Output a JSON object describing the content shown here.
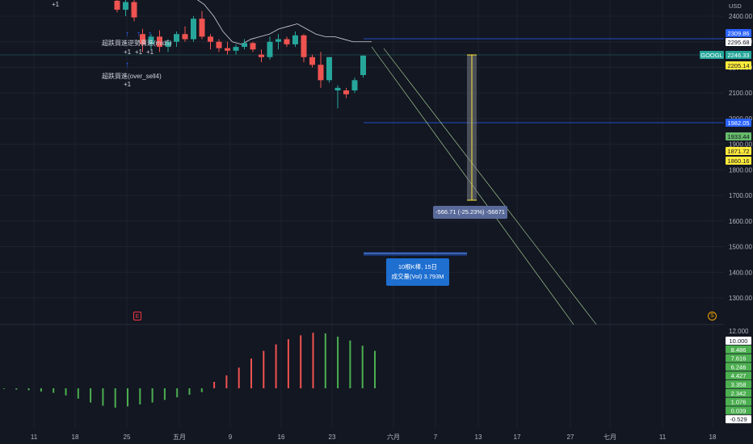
{
  "axis": {
    "currency": "USD",
    "main_ticks": [
      "2400.00",
      "2300.00",
      "2200.00",
      "2100.00",
      "2000.00",
      "1900.00",
      "1800.00",
      "1700.00",
      "1600.00",
      "1500.00",
      "1400.00",
      "1300.00"
    ],
    "osc_ticks": [
      "12.000"
    ],
    "x_ticks": [
      "11",
      "18",
      "25",
      "五月",
      "9",
      "16",
      "23",
      "六月",
      "7",
      "13",
      "17",
      "27",
      "七月",
      "11",
      "18"
    ]
  },
  "price_tags": [
    {
      "label": "2309.86",
      "color": "#2962ff",
      "text_color": "#ffffff"
    },
    {
      "label": "2295.68",
      "color": "#ffffff",
      "text_color": "#131722"
    },
    {
      "label": "GOOGL",
      "color": "#26a69a",
      "text_color": "#ffffff"
    },
    {
      "label": "2246.33",
      "color": "#26a69a",
      "text_color": "#ffffff"
    },
    {
      "label": "2205.14",
      "color": "#ffeb3b",
      "text_color": "#131722"
    },
    {
      "label": "1982.05",
      "color": "#2962ff",
      "text_color": "#ffffff"
    },
    {
      "label": "1933.44",
      "color": "#66bb6a",
      "text_color": "#131722"
    },
    {
      "label": "1871.72",
      "color": "#ffeb3b",
      "text_color": "#131722"
    },
    {
      "label": "1860.16",
      "color": "#ffeb3b",
      "text_color": "#131722"
    }
  ],
  "osc_tags": [
    {
      "label": "10.000",
      "color": "#ffffff",
      "text_color": "#131722"
    },
    {
      "label": "8.486",
      "color": "#4caf50",
      "text_color": "#ffffff"
    },
    {
      "label": "7.616",
      "color": "#4caf50",
      "text_color": "#ffffff"
    },
    {
      "label": "6.246",
      "color": "#4caf50",
      "text_color": "#ffffff"
    },
    {
      "label": "4.427",
      "color": "#4caf50",
      "text_color": "#ffffff"
    },
    {
      "label": "3.358",
      "color": "#4caf50",
      "text_color": "#ffffff"
    },
    {
      "label": "2.342",
      "color": "#4caf50",
      "text_color": "#ffffff"
    },
    {
      "label": "1.076",
      "color": "#4caf50",
      "text_color": "#ffffff"
    },
    {
      "label": "0.039",
      "color": "#4caf50",
      "text_color": "#ffffff"
    },
    {
      "label": "-0.529",
      "color": "#ffffff",
      "text_color": "#131722"
    }
  ],
  "annotations": {
    "signal_1": "超跌買進逆勢賣進(mid5)",
    "signal_1_counts": [
      "+1",
      "+1",
      "+1"
    ],
    "signal_2": "超跌買進(over_sell4)",
    "signal_2_count": "+1",
    "top_count": "+1",
    "measure": "-566.71 (-25.23%) -56671",
    "range_line1": "10根K棒, 15日",
    "range_line2": "成交量(Vol) 3.793M",
    "earnings_marker": "E",
    "split_marker": "S"
  },
  "colors": {
    "bg": "#131722",
    "grid": "#1e222d",
    "up": "#26a69a",
    "down": "#ef5350",
    "osc_up": "#4caf50",
    "osc_down": "#f05350"
  },
  "chart_data": {
    "type": "candlestick",
    "candles": [
      {
        "o": 2460,
        "h": 2480,
        "l": 2415,
        "c": 2425
      },
      {
        "o": 2425,
        "h": 2470,
        "l": 2400,
        "c": 2455
      },
      {
        "o": 2455,
        "h": 2475,
        "l": 2380,
        "c": 2395
      },
      {
        "o": 2330,
        "h": 2350,
        "l": 2260,
        "c": 2290
      },
      {
        "o": 2290,
        "h": 2330,
        "l": 2270,
        "c": 2320
      },
      {
        "o": 2320,
        "h": 2345,
        "l": 2260,
        "c": 2280
      },
      {
        "o": 2280,
        "h": 2310,
        "l": 2260,
        "c": 2300
      },
      {
        "o": 2300,
        "h": 2340,
        "l": 2280,
        "c": 2330
      },
      {
        "o": 2330,
        "h": 2360,
        "l": 2300,
        "c": 2310
      },
      {
        "o": 2310,
        "h": 2400,
        "l": 2300,
        "c": 2390
      },
      {
        "o": 2390,
        "h": 2420,
        "l": 2310,
        "c": 2320
      },
      {
        "o": 2320,
        "h": 2330,
        "l": 2270,
        "c": 2300
      },
      {
        "o": 2300,
        "h": 2310,
        "l": 2260,
        "c": 2275
      },
      {
        "o": 2275,
        "h": 2300,
        "l": 2250,
        "c": 2265
      },
      {
        "o": 2265,
        "h": 2290,
        "l": 2250,
        "c": 2280
      },
      {
        "o": 2280,
        "h": 2310,
        "l": 2270,
        "c": 2295
      },
      {
        "o": 2295,
        "h": 2300,
        "l": 2260,
        "c": 2270
      },
      {
        "o": 2250,
        "h": 2270,
        "l": 2220,
        "c": 2240
      },
      {
        "o": 2240,
        "h": 2320,
        "l": 2230,
        "c": 2300
      },
      {
        "o": 2300,
        "h": 2330,
        "l": 2270,
        "c": 2310
      },
      {
        "o": 2310,
        "h": 2320,
        "l": 2280,
        "c": 2290
      },
      {
        "o": 2290,
        "h": 2340,
        "l": 2280,
        "c": 2325
      },
      {
        "o": 2325,
        "h": 2330,
        "l": 2220,
        "c": 2240
      },
      {
        "o": 2240,
        "h": 2250,
        "l": 2200,
        "c": 2210
      },
      {
        "o": 2210,
        "h": 2260,
        "l": 2120,
        "c": 2150
      },
      {
        "o": 2150,
        "h": 2240,
        "l": 2140,
        "c": 2240
      },
      {
        "o": 2110,
        "h": 2130,
        "l": 2040,
        "c": 2120
      },
      {
        "o": 2110,
        "h": 2120,
        "l": 2080,
        "c": 2095
      },
      {
        "o": 2110,
        "h": 2160,
        "l": 2100,
        "c": 2150
      },
      {
        "o": 2170,
        "h": 2246,
        "l": 2160,
        "c": 2246
      }
    ],
    "ma_line": [
      2480,
      2470,
      2445,
      2400,
      2340,
      2300,
      2290,
      2310,
      2320,
      2330,
      2350,
      2360,
      2370,
      2350,
      2330,
      2320,
      2320,
      2310,
      2300,
      2300,
      2300
    ],
    "measure": {
      "from": 2246.33,
      "to": 1680,
      "change": "-566.71",
      "pct": "-25.23%"
    },
    "oscillator": [
      -0.1,
      -0.2,
      -0.3,
      -0.5,
      -0.7,
      -1.1,
      -1.6,
      -2.2,
      -2.7,
      -3.0,
      -2.8,
      -2.5,
      -2.2,
      -1.8,
      -1.4,
      -1.0,
      -0.6,
      1.0,
      2.0,
      3.2,
      4.6,
      5.8,
      6.8,
      7.6,
      8.2,
      8.6,
      8.5,
      8.0,
      7.4,
      6.6,
      5.8
    ]
  }
}
